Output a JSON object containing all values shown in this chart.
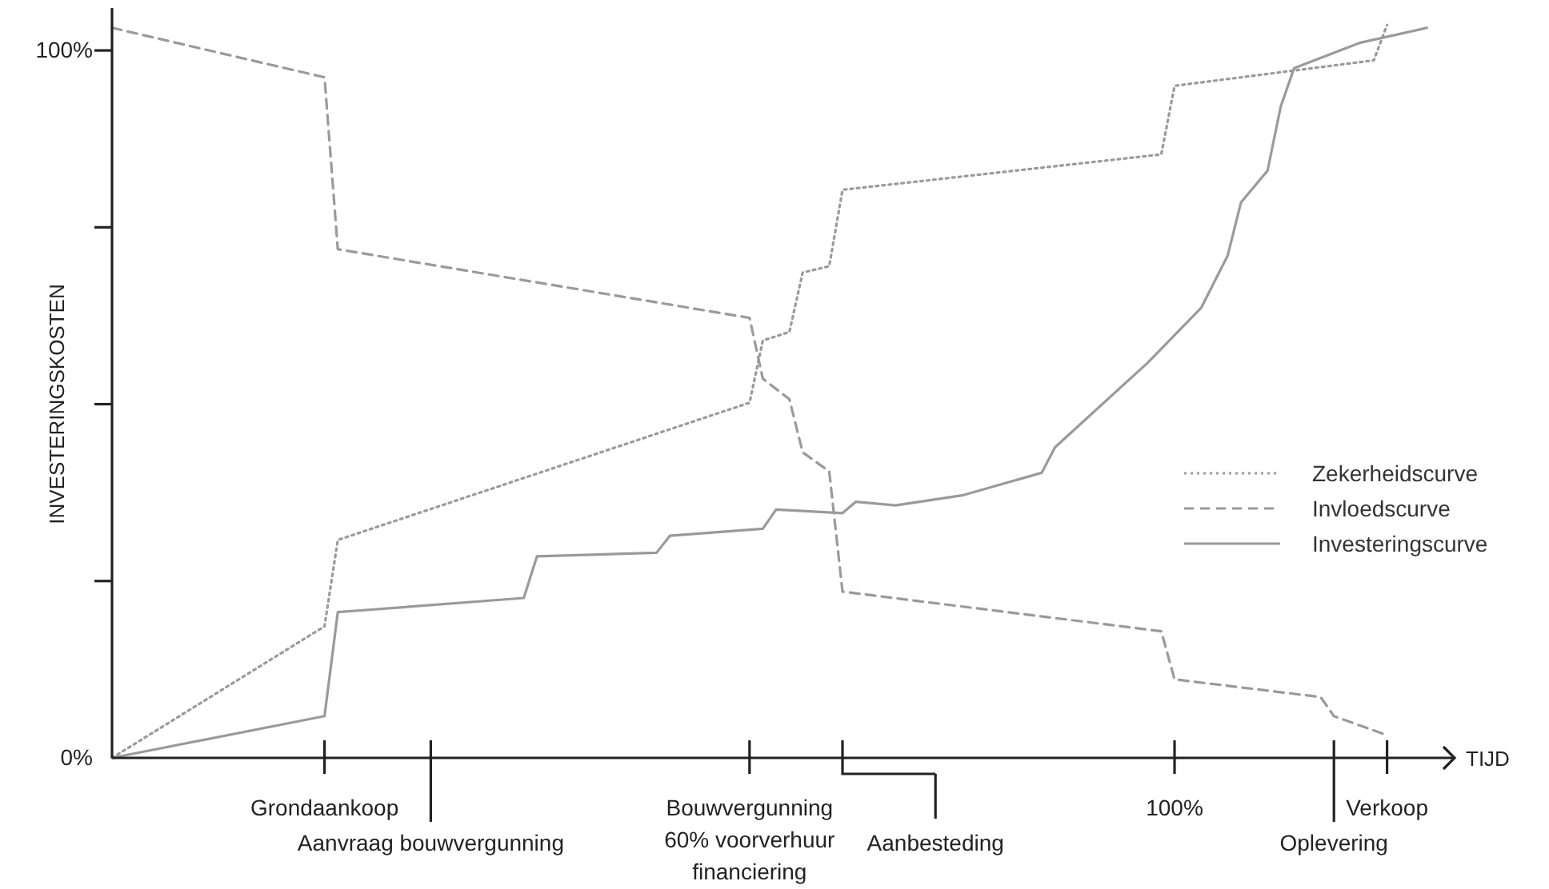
{
  "chart_data": {
    "type": "line",
    "ylabel": "INVESTERINGSKOSTEN",
    "xlabel": "TIJD",
    "ylim": [
      0,
      106
    ],
    "yticks": [
      {
        "value": 0,
        "label": "0%"
      },
      {
        "value": 25,
        "label": null
      },
      {
        "value": 50,
        "label": null
      },
      {
        "value": 75,
        "label": null
      },
      {
        "value": 100,
        "label": "100%"
      }
    ],
    "categories": [
      null,
      null,
      null,
      null,
      null,
      null,
      null,
      null,
      null,
      null,
      null,
      null,
      null,
      null,
      null,
      null,
      "Grondaankoop",
      null,
      null,
      null,
      null,
      null,
      null,
      null,
      "Aanvraag bouwvergunning",
      null,
      null,
      null,
      null,
      null,
      null,
      null,
      null,
      null,
      null,
      null,
      null,
      null,
      null,
      null,
      null,
      null,
      null,
      null,
      null,
      null,
      null,
      null,
      "Bouwvergunning\n60% voorverhuur\nfinanciering",
      null,
      null,
      null,
      null,
      null,
      null,
      null,
      null,
      null,
      null,
      null,
      null,
      null,
      "Aanbesteding",
      null,
      null,
      null,
      null,
      null,
      null,
      null,
      null,
      null,
      null,
      null,
      null,
      null,
      null,
      null,
      null,
      null,
      "100%",
      null,
      null,
      null,
      null,
      null,
      null,
      null,
      null,
      null,
      null,
      null,
      "Oplevering",
      null,
      null,
      null,
      "Verkoop",
      null,
      null,
      null
    ],
    "legend": "right",
    "grid": false,
    "marker": "none",
    "series": [
      {
        "name": "Zekerheidscurve",
        "color": "#9a9a9a",
        "line_style": "dotted",
        "values": [
          0,
          null,
          null,
          null,
          null,
          null,
          null,
          null,
          null,
          null,
          null,
          null,
          null,
          null,
          null,
          null,
          18.6,
          30.8,
          null,
          null,
          null,
          null,
          null,
          null,
          null,
          null,
          null,
          null,
          null,
          null,
          null,
          null,
          null,
          null,
          null,
          null,
          null,
          null,
          null,
          null,
          null,
          null,
          null,
          null,
          null,
          null,
          null,
          null,
          50.2,
          59,
          null,
          60.2,
          68.6,
          null,
          69.5,
          80.3,
          null,
          null,
          null,
          null,
          null,
          null,
          null,
          null,
          null,
          null,
          null,
          null,
          null,
          null,
          null,
          null,
          null,
          null,
          null,
          null,
          null,
          null,
          null,
          85.3,
          95,
          null,
          null,
          null,
          null,
          null,
          null,
          null,
          null,
          null,
          null,
          null,
          null,
          null,
          null,
          98.6,
          103.6,
          null,
          null,
          null
        ]
      },
      {
        "name": "Invloedscurve",
        "color": "#9a9a9a",
        "line_style": "dashed",
        "values": [
          103.2,
          null,
          null,
          null,
          null,
          null,
          null,
          null,
          null,
          null,
          null,
          null,
          null,
          null,
          null,
          null,
          96.2,
          71.9,
          null,
          null,
          null,
          null,
          null,
          null,
          null,
          null,
          null,
          null,
          null,
          null,
          null,
          null,
          null,
          null,
          null,
          null,
          null,
          null,
          null,
          null,
          null,
          null,
          null,
          null,
          null,
          null,
          null,
          null,
          62.2,
          53.6,
          null,
          50.7,
          43.2,
          null,
          40.5,
          23.5,
          null,
          null,
          null,
          null,
          null,
          null,
          null,
          null,
          null,
          null,
          null,
          null,
          null,
          null,
          null,
          null,
          null,
          null,
          null,
          null,
          null,
          null,
          null,
          17.9,
          11.1,
          null,
          null,
          null,
          null,
          null,
          null,
          null,
          null,
          null,
          null,
          8.6,
          5.9,
          null,
          null,
          null,
          3.2,
          null,
          null,
          null
        ]
      },
      {
        "name": "Investeringscurve",
        "color": "#9a9a9a",
        "line_style": "solid",
        "values": [
          0,
          null,
          null,
          null,
          null,
          null,
          null,
          null,
          null,
          null,
          null,
          null,
          null,
          null,
          null,
          null,
          5.9,
          20.6,
          null,
          null,
          null,
          null,
          null,
          null,
          null,
          null,
          null,
          null,
          null,
          null,
          null,
          22.6,
          28.5,
          null,
          null,
          null,
          null,
          null,
          null,
          null,
          null,
          29,
          31.4,
          null,
          null,
          null,
          null,
          null,
          null,
          32.4,
          35.1,
          null,
          null,
          null,
          null,
          34.6,
          36.2,
          null,
          null,
          35.7,
          null,
          null,
          null,
          null,
          37.1,
          null,
          null,
          null,
          null,
          null,
          40.3,
          43.9,
          null,
          null,
          null,
          null,
          null,
          null,
          55.9,
          null,
          null,
          null,
          63.6,
          null,
          71,
          78.5,
          null,
          83,
          92.1,
          97.5,
          null,
          null,
          null,
          null,
          101.1,
          null,
          null,
          null,
          null,
          103.2
        ]
      }
    ]
  }
}
